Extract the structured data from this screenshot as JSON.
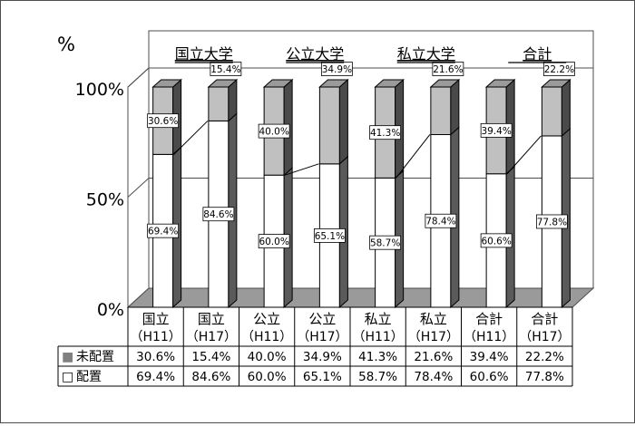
{
  "chart_data": {
    "type": "bar",
    "stacked": true,
    "ylabel": "%",
    "ylim": [
      0,
      100
    ],
    "yticks": [
      "0%",
      "50%",
      "100%"
    ],
    "groups": [
      "国立大学",
      "公立大学",
      "私立大学",
      "合計"
    ],
    "categories": [
      {
        "line1": "国立",
        "line2": "（H11）"
      },
      {
        "line1": "国立",
        "line2": "（H17）"
      },
      {
        "line1": "公立",
        "line2": "（H11）"
      },
      {
        "line1": "公立",
        "line2": "（H17）"
      },
      {
        "line1": "私立",
        "line2": "（H11）"
      },
      {
        "line1": "私立",
        "line2": "（H17）"
      },
      {
        "line1": "合計",
        "line2": "（H11）"
      },
      {
        "line1": "合計",
        "line2": "（H17）"
      }
    ],
    "series": [
      {
        "name": "配置",
        "values": [
          69.4,
          84.6,
          60.0,
          65.1,
          58.7,
          78.4,
          60.6,
          77.8
        ],
        "labels": [
          "69.4%",
          "84.6%",
          "60.0%",
          "65.1%",
          "58.7%",
          "78.4%",
          "60.6%",
          "77.8%"
        ],
        "color": "#ffffff"
      },
      {
        "name": "未配置",
        "values": [
          30.6,
          15.4,
          40.0,
          34.9,
          41.3,
          21.6,
          39.4,
          22.2
        ],
        "labels": [
          "30.6%",
          "15.4%",
          "40.0%",
          "34.9%",
          "41.3%",
          "21.6%",
          "39.4%",
          "22.2%"
        ],
        "color": "#c0c0c0"
      }
    ],
    "table_rows": [
      {
        "marker": "■",
        "label": "未配置",
        "series": 1
      },
      {
        "marker": "□",
        "label": "配置",
        "series": 0
      }
    ],
    "grid": true,
    "gridline_values": [
      50
    ],
    "legend": "data table below chart",
    "connector_lines": "between 配置 tops within each group"
  }
}
